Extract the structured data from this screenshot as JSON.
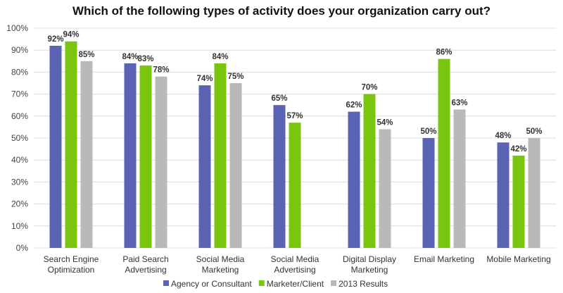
{
  "chart_data": {
    "type": "bar",
    "title": "Which of the following types of activity does your organization carry out?",
    "xlabel": "",
    "ylabel": "",
    "ylim": [
      0,
      100
    ],
    "yticks": [
      0,
      10,
      20,
      30,
      40,
      50,
      60,
      70,
      80,
      90,
      100
    ],
    "ytick_labels": [
      "0%",
      "10%",
      "20%",
      "30%",
      "40%",
      "50%",
      "60%",
      "70%",
      "80%",
      "90%",
      "100%"
    ],
    "grid": true,
    "legend_position": "bottom",
    "categories": [
      [
        "Search Engine",
        "Optimization"
      ],
      [
        "Paid Search",
        "Advertising"
      ],
      [
        "Social Media",
        "Marketing"
      ],
      [
        "Social Media",
        "Advertising"
      ],
      [
        "Digital Display",
        "Marketing"
      ],
      [
        "Email Marketing"
      ],
      [
        "Mobile Marketing"
      ]
    ],
    "series": [
      {
        "name": "Agency or Consultant",
        "color": "#5b63b5",
        "values": [
          92,
          84,
          74,
          65,
          62,
          50,
          48
        ]
      },
      {
        "name": "Marketer/Client",
        "color": "#7ac60e",
        "values": [
          94,
          83,
          84,
          57,
          70,
          86,
          42
        ]
      },
      {
        "name": "2013 Results",
        "color": "#b9b9b9",
        "values": [
          85,
          78,
          75,
          null,
          54,
          63,
          50
        ]
      }
    ]
  }
}
